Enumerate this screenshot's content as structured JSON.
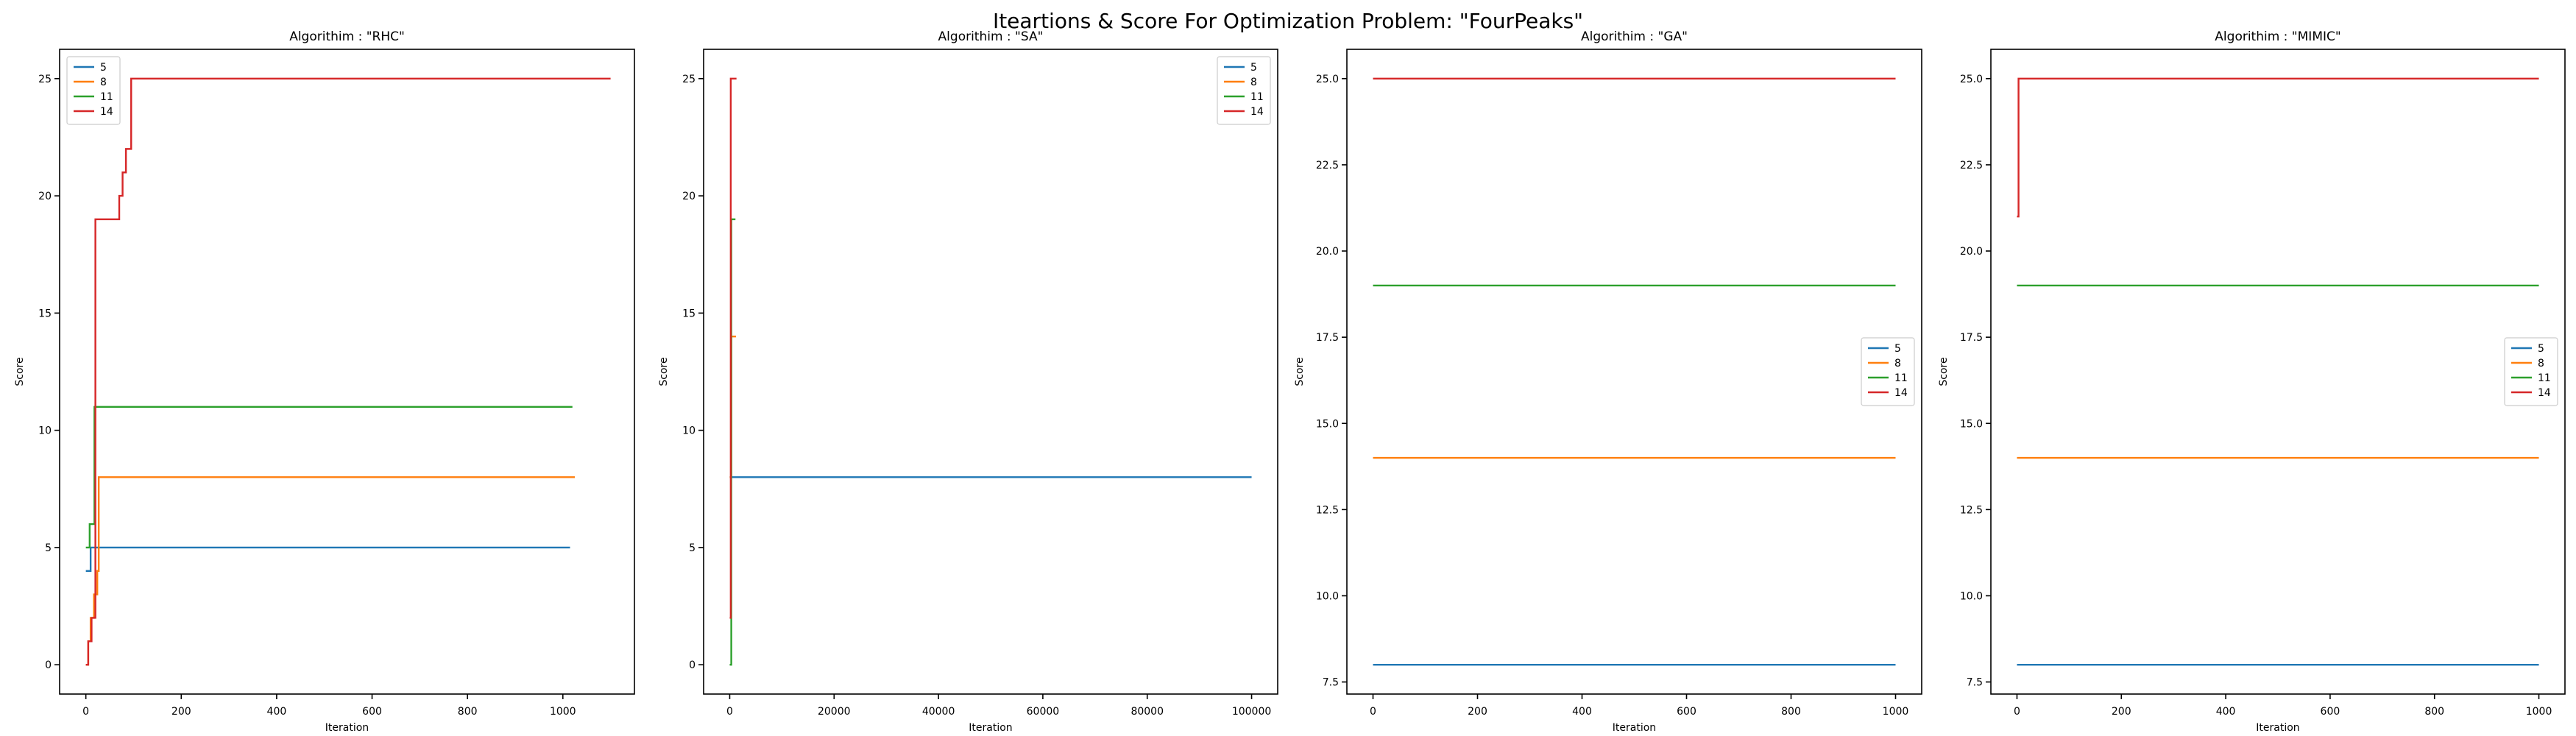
{
  "figure": {
    "suptitle": "Iteartions & Score For Optimization Problem: \"FourPeaks\""
  },
  "chart_data": [
    {
      "type": "line",
      "title": "Algorithim : \"RHC\"",
      "xlabel": "Iteration",
      "ylabel": "Score",
      "xlim": [
        -55,
        1150
      ],
      "ylim": [
        -1.25,
        26.25
      ],
      "xticks": [
        0,
        200,
        400,
        600,
        800,
        1000
      ],
      "yticks": [
        0,
        5,
        10,
        15,
        20,
        25
      ],
      "legend_loc": "upper left",
      "step": true,
      "series": [
        {
          "name": "5",
          "color": "#1f77b4",
          "points": [
            [
              0,
              4
            ],
            [
              10,
              4
            ],
            [
              10,
              5
            ],
            [
              1015,
              5
            ]
          ]
        },
        {
          "name": "8",
          "color": "#ff7f0e",
          "points": [
            [
              0,
              0
            ],
            [
              5,
              0
            ],
            [
              5,
              1
            ],
            [
              10,
              1
            ],
            [
              10,
              2
            ],
            [
              17,
              2
            ],
            [
              17,
              3
            ],
            [
              24,
              3
            ],
            [
              24,
              4
            ],
            [
              27,
              4
            ],
            [
              27,
              8
            ],
            [
              1025,
              8
            ]
          ]
        },
        {
          "name": "11",
          "color": "#2ca02c",
          "points": [
            [
              0,
              5
            ],
            [
              8,
              5
            ],
            [
              8,
              6
            ],
            [
              18,
              6
            ],
            [
              18,
              11
            ],
            [
              1020,
              11
            ]
          ]
        },
        {
          "name": "14",
          "color": "#d62728",
          "points": [
            [
              0,
              0
            ],
            [
              5,
              0
            ],
            [
              5,
              1
            ],
            [
              12,
              1
            ],
            [
              12,
              2
            ],
            [
              20,
              2
            ],
            [
              20,
              19
            ],
            [
              70,
              19
            ],
            [
              70,
              20
            ],
            [
              77,
              20
            ],
            [
              77,
              21
            ],
            [
              84,
              21
            ],
            [
              84,
              22
            ],
            [
              95,
              22
            ],
            [
              95,
              25
            ],
            [
              1100,
              25
            ]
          ]
        }
      ]
    },
    {
      "type": "line",
      "title": "Algorithim : \"SA\"",
      "xlabel": "Iteration",
      "ylabel": "Score",
      "xlim": [
        -5000,
        105000
      ],
      "ylim": [
        -1.25,
        26.25
      ],
      "xticks": [
        0,
        20000,
        40000,
        60000,
        80000,
        100000
      ],
      "yticks": [
        0,
        5,
        10,
        15,
        20,
        25
      ],
      "legend_loc": "upper right",
      "step": true,
      "series": [
        {
          "name": "5",
          "color": "#1f77b4",
          "points": [
            [
              0,
              8
            ],
            [
              100000,
              8
            ]
          ]
        },
        {
          "name": "8",
          "color": "#ff7f0e",
          "points": [
            [
              0,
              8
            ],
            [
              300,
              8
            ],
            [
              300,
              14
            ],
            [
              1200,
              14
            ]
          ]
        },
        {
          "name": "11",
          "color": "#2ca02c",
          "points": [
            [
              0,
              0
            ],
            [
              300,
              0
            ],
            [
              300,
              19
            ],
            [
              1100,
              19
            ]
          ]
        },
        {
          "name": "14",
          "color": "#d62728",
          "points": [
            [
              0,
              2
            ],
            [
              200,
              2
            ],
            [
              200,
              25
            ],
            [
              1300,
              25
            ]
          ]
        }
      ]
    },
    {
      "type": "line",
      "title": "Algorithim : \"GA\"",
      "xlabel": "Iteration",
      "ylabel": "Score",
      "xlim": [
        -50,
        1050
      ],
      "ylim": [
        7.15,
        25.85
      ],
      "xticks": [
        0,
        200,
        400,
        600,
        800,
        1000
      ],
      "yticks": [
        7.5,
        10.0,
        12.5,
        15.0,
        17.5,
        20.0,
        22.5,
        25.0
      ],
      "legend_loc": "center right",
      "step": true,
      "series": [
        {
          "name": "5",
          "color": "#1f77b4",
          "points": [
            [
              0,
              8
            ],
            [
              1000,
              8
            ]
          ]
        },
        {
          "name": "8",
          "color": "#ff7f0e",
          "points": [
            [
              0,
              14
            ],
            [
              1000,
              14
            ]
          ]
        },
        {
          "name": "11",
          "color": "#2ca02c",
          "points": [
            [
              0,
              19
            ],
            [
              1000,
              19
            ]
          ]
        },
        {
          "name": "14",
          "color": "#d62728",
          "points": [
            [
              0,
              25
            ],
            [
              1000,
              25
            ]
          ]
        }
      ]
    },
    {
      "type": "line",
      "title": "Algorithim : \"MIMIC\"",
      "xlabel": "Iteration",
      "ylabel": "Score",
      "xlim": [
        -50,
        1050
      ],
      "ylim": [
        7.15,
        25.85
      ],
      "xticks": [
        0,
        200,
        400,
        600,
        800,
        1000
      ],
      "yticks": [
        7.5,
        10.0,
        12.5,
        15.0,
        17.5,
        20.0,
        22.5,
        25.0
      ],
      "legend_loc": "center right",
      "step": true,
      "series": [
        {
          "name": "5",
          "color": "#1f77b4",
          "points": [
            [
              0,
              8
            ],
            [
              1000,
              8
            ]
          ]
        },
        {
          "name": "8",
          "color": "#ff7f0e",
          "points": [
            [
              0,
              14
            ],
            [
              1000,
              14
            ]
          ]
        },
        {
          "name": "11",
          "color": "#2ca02c",
          "points": [
            [
              0,
              19
            ],
            [
              1000,
              19
            ]
          ]
        },
        {
          "name": "14",
          "color": "#d62728",
          "points": [
            [
              0,
              21
            ],
            [
              3,
              21
            ],
            [
              3,
              25
            ],
            [
              1000,
              25
            ]
          ]
        }
      ]
    }
  ]
}
